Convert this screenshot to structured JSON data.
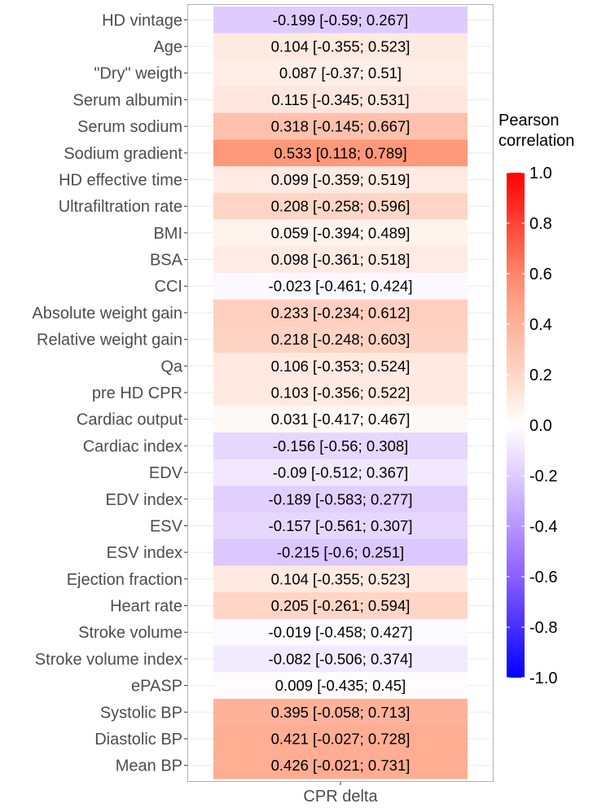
{
  "chart_data": {
    "type": "heatmap",
    "title": "",
    "xlabel": "",
    "ylabel": "",
    "x_categories": [
      "CPR delta"
    ],
    "rows": [
      {
        "label": "HD vintage",
        "r": -0.199,
        "text": "-0.199 [-0.59; 0.267]"
      },
      {
        "label": "Age",
        "r": 0.104,
        "text": "0.104 [-0.355; 0.523]"
      },
      {
        "label": "\"Dry\" weigth",
        "r": 0.087,
        "text": "0.087 [-0.37; 0.51]"
      },
      {
        "label": "Serum albumin",
        "r": 0.115,
        "text": "0.115 [-0.345; 0.531]"
      },
      {
        "label": "Serum sodium",
        "r": 0.318,
        "text": "0.318 [-0.145; 0.667]"
      },
      {
        "label": "Sodium gradient",
        "r": 0.533,
        "text": "0.533 [0.118; 0.789]"
      },
      {
        "label": "HD effective time",
        "r": 0.099,
        "text": "0.099 [-0.359; 0.519]"
      },
      {
        "label": "Ultrafiltration rate",
        "r": 0.208,
        "text": "0.208 [-0.258; 0.596]"
      },
      {
        "label": "BMI",
        "r": 0.059,
        "text": "0.059 [-0.394; 0.489]"
      },
      {
        "label": "BSA",
        "r": 0.098,
        "text": "0.098 [-0.361; 0.518]"
      },
      {
        "label": "CCI",
        "r": -0.023,
        "text": "-0.023 [-0.461; 0.424]"
      },
      {
        "label": "Absolute weight gain",
        "r": 0.233,
        "text": "0.233 [-0.234; 0.612]"
      },
      {
        "label": "Relative weight gain",
        "r": 0.218,
        "text": "0.218 [-0.248; 0.603]"
      },
      {
        "label": "Qa",
        "r": 0.106,
        "text": "0.106 [-0.353; 0.524]"
      },
      {
        "label": "pre HD CPR",
        "r": 0.103,
        "text": "0.103 [-0.356; 0.522]"
      },
      {
        "label": "Cardiac output",
        "r": 0.031,
        "text": "0.031 [-0.417; 0.467]"
      },
      {
        "label": "Cardiac index",
        "r": -0.156,
        "text": "-0.156 [-0.56; 0.308]"
      },
      {
        "label": "EDV",
        "r": -0.09,
        "text": "-0.09 [-0.512; 0.367]"
      },
      {
        "label": "EDV index",
        "r": -0.189,
        "text": "-0.189 [-0.583; 0.277]"
      },
      {
        "label": "ESV",
        "r": -0.157,
        "text": "-0.157 [-0.561; 0.307]"
      },
      {
        "label": "ESV index",
        "r": -0.215,
        "text": "-0.215 [-0.6; 0.251]"
      },
      {
        "label": "Ejection fraction",
        "r": 0.104,
        "text": "0.104 [-0.355; 0.523]"
      },
      {
        "label": "Heart rate",
        "r": 0.205,
        "text": "0.205 [-0.261; 0.594]"
      },
      {
        "label": "Stroke volume",
        "r": -0.019,
        "text": "-0.019 [-0.458; 0.427]"
      },
      {
        "label": "Stroke volume index",
        "r": -0.082,
        "text": "-0.082 [-0.506; 0.374]"
      },
      {
        "label": "ePASP",
        "r": 0.009,
        "text": "0.009 [-0.435; 0.45]"
      },
      {
        "label": "Systolic BP",
        "r": 0.395,
        "text": "0.395 [-0.058; 0.713]"
      },
      {
        "label": "Diastolic BP",
        "r": 0.421,
        "text": "0.421 [-0.027; 0.728]"
      },
      {
        "label": "Mean BP",
        "r": 0.426,
        "text": "0.426 [-0.021; 0.731]"
      }
    ],
    "legend": {
      "title_lines": [
        "Pearson",
        "correlation"
      ],
      "range": [
        -1,
        1
      ],
      "ticks": [
        "1.0",
        "0.8",
        "0.6",
        "0.4",
        "0.2",
        "0.0",
        "-0.2",
        "-0.4",
        "-0.6",
        "-0.8",
        "-1.0"
      ],
      "tick_values": [
        1,
        0.8,
        0.6,
        0.4,
        0.2,
        0,
        -0.2,
        -0.4,
        -0.6,
        -0.8,
        -1
      ],
      "placement": "right",
      "low_color": "#0000FF",
      "mid_color": "#FFFFFF",
      "high_color": "#FF0000"
    },
    "grid": true
  }
}
